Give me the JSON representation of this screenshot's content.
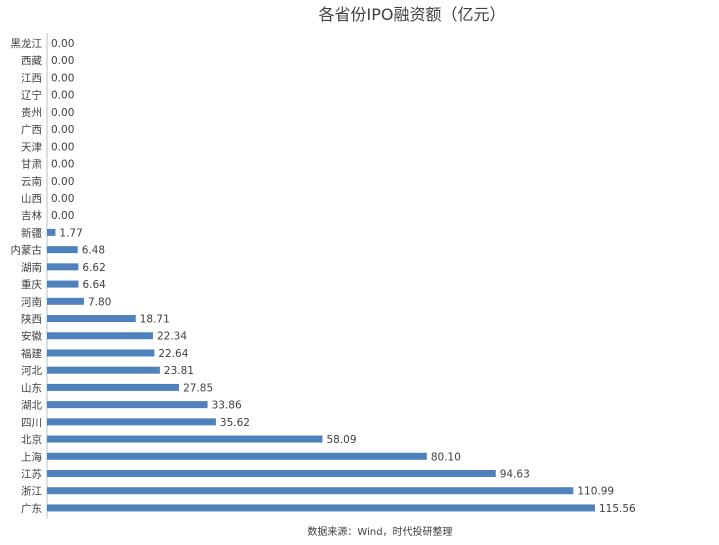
{
  "chart_data": {
    "type": "bar",
    "orientation": "horizontal",
    "title": "各省份IPO融资额（亿元）",
    "source": "数据来源：Wind，时代投研整理",
    "bar_color": "#4F81BD",
    "categories": [
      "黑龙江",
      "西藏",
      "江西",
      "辽宁",
      "贵州",
      "广西",
      "天津",
      "甘肃",
      "云南",
      "山西",
      "吉林",
      "新疆",
      "内蒙古",
      "湖南",
      "重庆",
      "河南",
      "陕西",
      "安徽",
      "福建",
      "河北",
      "山东",
      "湖北",
      "四川",
      "北京",
      "上海",
      "江苏",
      "浙江",
      "广东"
    ],
    "values": [
      0.0,
      0.0,
      0.0,
      0.0,
      0.0,
      0.0,
      0.0,
      0.0,
      0.0,
      0.0,
      0.0,
      1.77,
      6.48,
      6.62,
      6.64,
      7.8,
      18.71,
      22.34,
      22.64,
      23.81,
      27.85,
      33.86,
      35.62,
      58.09,
      80.1,
      94.63,
      110.99,
      115.56
    ],
    "value_labels": [
      "0.00",
      "0.00",
      "0.00",
      "0.00",
      "0.00",
      "0.00",
      "0.00",
      "0.00",
      "0.00",
      "0.00",
      "0.00",
      "1.77",
      "6.48",
      "6.62",
      "6.64",
      "7.80",
      "18.71",
      "22.34",
      "22.64",
      "23.81",
      "27.85",
      "33.86",
      "35.62",
      "58.09",
      "80.10",
      "94.63",
      "110.99",
      "115.56"
    ],
    "xlim": [
      0,
      115.56
    ],
    "grid": false,
    "legend": "none"
  }
}
